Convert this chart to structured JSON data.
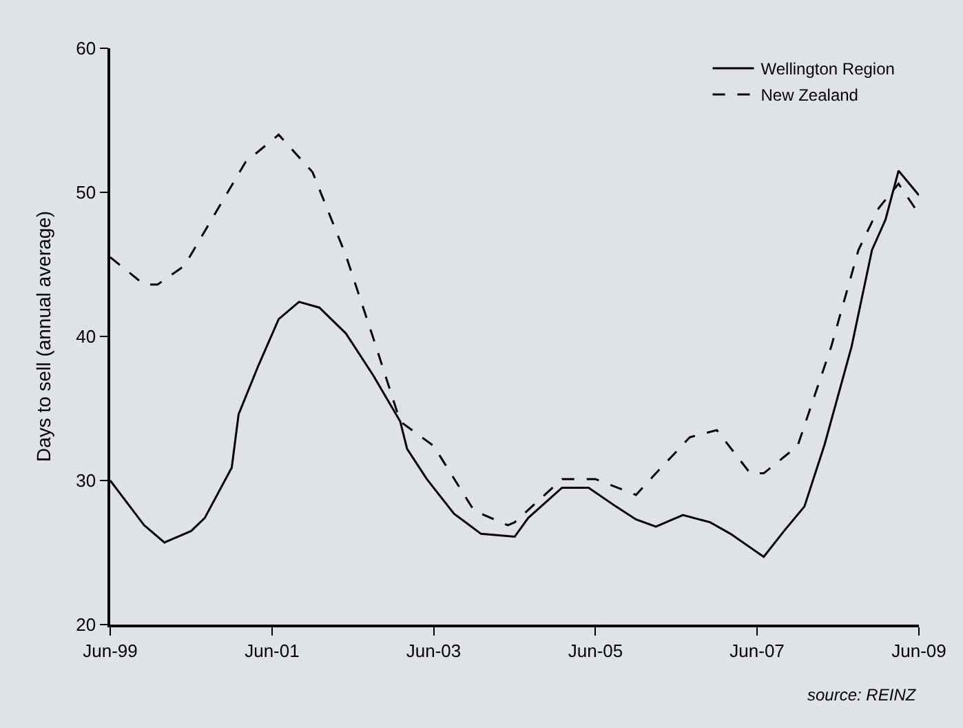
{
  "chart_data": {
    "type": "line",
    "ylabel": "Days to sell (annual average)",
    "xlim": [
      "1999-06",
      "2009-06"
    ],
    "xticks": [
      {
        "value": "1999-06",
        "label": "Jun-99"
      },
      {
        "value": "2001-06",
        "label": "Jun-01"
      },
      {
        "value": "2003-06",
        "label": "Jun-03"
      },
      {
        "value": "2005-06",
        "label": "Jun-05"
      },
      {
        "value": "2007-06",
        "label": "Jun-07"
      },
      {
        "value": "2009-06",
        "label": "Jun-09"
      }
    ],
    "ylim": [
      20,
      60
    ],
    "yticks": [
      20,
      30,
      40,
      50,
      60
    ],
    "grid": false,
    "legend": "top right",
    "series": [
      {
        "name": "Wellington Region",
        "color": "#000000",
        "line_style": "solid",
        "x": [
          "1999-06",
          "1999-11",
          "2000-02",
          "2000-06",
          "2000-08",
          "2000-12",
          "2001-01",
          "2001-04",
          "2001-07",
          "2001-10",
          "2002-01",
          "2002-05",
          "2002-09",
          "2003-01",
          "2003-02",
          "2003-05",
          "2003-09",
          "2004-01",
          "2004-06",
          "2004-08",
          "2005-01",
          "2005-05",
          "2005-09",
          "2005-12",
          "2006-03",
          "2006-07",
          "2006-11",
          "2007-02",
          "2007-07",
          "2007-10",
          "2008-01",
          "2008-04",
          "2008-08",
          "2008-11",
          "2009-01",
          "2009-03",
          "2009-06"
        ],
        "values": [
          30.0,
          26.9,
          25.7,
          26.5,
          27.4,
          30.9,
          34.6,
          38.0,
          41.2,
          42.4,
          42.0,
          40.2,
          37.3,
          34.1,
          32.2,
          30.1,
          27.7,
          26.3,
          26.1,
          27.4,
          29.5,
          29.5,
          28.2,
          27.3,
          26.8,
          27.6,
          27.1,
          26.3,
          24.7,
          26.5,
          28.2,
          32.5,
          39.3,
          46.0,
          48.1,
          51.5,
          49.8
        ]
      },
      {
        "name": "New Zealand",
        "color": "#000000",
        "line_style": "dashed",
        "x": [
          "1999-06",
          "1999-11",
          "2000-01",
          "2000-05",
          "2000-10",
          "2001-02",
          "2001-07",
          "2001-12",
          "2002-05",
          "2002-09",
          "2003-01",
          "2003-06",
          "2003-12",
          "2004-05",
          "2004-06",
          "2005-01",
          "2005-06",
          "2005-12",
          "2006-03",
          "2006-08",
          "2006-12",
          "2007-05",
          "2007-07",
          "2007-12",
          "2008-05",
          "2008-09",
          "2008-12",
          "2009-03",
          "2009-06"
        ],
        "values": [
          45.5,
          43.6,
          43.6,
          44.9,
          48.9,
          52.1,
          54.0,
          51.4,
          45.6,
          39.9,
          34.1,
          32.4,
          27.9,
          26.9,
          27.1,
          30.1,
          30.1,
          29.0,
          30.5,
          33.0,
          33.5,
          30.5,
          30.5,
          32.4,
          39.3,
          46.0,
          48.9,
          50.6,
          48.5
        ]
      }
    ],
    "annotations": [
      "source: REINZ"
    ]
  }
}
